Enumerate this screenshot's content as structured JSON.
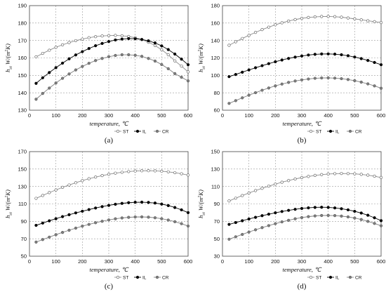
{
  "common": {
    "xlabel": "temperature, ℃",
    "ylabel": "h",
    "ylabel_sub": "ct",
    "ylabel_unit": " W/(m",
    "ylabel_sup": "2",
    "ylabel_end": "K)",
    "legend": [
      "ST",
      "IL",
      "CR"
    ],
    "colors": {
      "ST": "#ffffff",
      "IL": "#000000",
      "CR": "#7f7f7f",
      "frame": "#444444",
      "grid": "#9a9a9a"
    }
  },
  "chart_data": [
    {
      "panel_label": "(a)",
      "type": "line",
      "x": [
        25,
        50,
        75,
        100,
        125,
        150,
        175,
        200,
        225,
        250,
        275,
        300,
        325,
        350,
        375,
        400,
        425,
        450,
        475,
        500,
        525,
        550,
        575,
        600
      ],
      "xlim": [
        0,
        600
      ],
      "xticks": [
        0,
        100,
        200,
        300,
        400,
        500,
        600
      ],
      "ylim": [
        130,
        190
      ],
      "yticks": [
        130,
        140,
        150,
        160,
        170,
        180,
        190
      ],
      "xlabel": "temperature, ℃",
      "grid": true,
      "legend_position": "bottom-right",
      "series": [
        {
          "name": "ST",
          "values": [
            160.6,
            162.6,
            164.4,
            166.1,
            167.5,
            168.8,
            169.9,
            170.8,
            171.6,
            172.2,
            172.6,
            172.8,
            172.9,
            172.7,
            172.3,
            171.6,
            170.5,
            169.0,
            167.1,
            164.7,
            161.8,
            158.3,
            155.3,
            152.0
          ]
        },
        {
          "name": "IL",
          "values": [
            145.4,
            148.6,
            151.6,
            154.4,
            157.0,
            159.5,
            161.7,
            163.6,
            165.4,
            167.0,
            168.3,
            169.4,
            170.3,
            170.8,
            171.1,
            171.0,
            170.6,
            169.8,
            168.6,
            166.9,
            164.8,
            162.2,
            159.3,
            156.1
          ]
        },
        {
          "name": "CR",
          "values": [
            136.3,
            139.6,
            142.7,
            145.6,
            148.3,
            150.8,
            153.1,
            155.1,
            156.9,
            158.5,
            159.7,
            160.7,
            161.4,
            161.8,
            161.8,
            161.5,
            160.9,
            159.7,
            158.2,
            156.2,
            153.8,
            151.0,
            148.9,
            146.8
          ]
        }
      ]
    },
    {
      "panel_label": "(b)",
      "type": "line",
      "x": [
        25,
        50,
        75,
        100,
        125,
        150,
        175,
        200,
        225,
        250,
        275,
        300,
        325,
        350,
        375,
        400,
        425,
        450,
        475,
        500,
        525,
        550,
        575,
        600
      ],
      "xlim": [
        0,
        600
      ],
      "xticks": [
        0,
        100,
        200,
        300,
        400,
        500,
        600
      ],
      "ylim": [
        60,
        180
      ],
      "yticks": [
        60,
        80,
        100,
        120,
        140,
        160,
        180
      ],
      "xlabel": "temperature, ℃",
      "grid": true,
      "legend_position": "bottom-right",
      "series": [
        {
          "name": "ST",
          "values": [
            134.5,
            138.5,
            142.3,
            145.9,
            149.3,
            152.5,
            155.3,
            158.0,
            160.3,
            162.3,
            164.0,
            165.4,
            166.4,
            167.1,
            167.5,
            167.6,
            167.3,
            166.7,
            165.8,
            164.8,
            163.7,
            162.6,
            161.6,
            160.6
          ]
        },
        {
          "name": "IL",
          "values": [
            98.5,
            101.0,
            103.6,
            106.2,
            108.7,
            111.1,
            113.4,
            115.6,
            117.6,
            119.4,
            120.9,
            122.2,
            123.3,
            124.1,
            124.5,
            124.6,
            124.3,
            123.6,
            122.5,
            121.0,
            119.2,
            117.1,
            114.8,
            112.2
          ]
        },
        {
          "name": "CR",
          "values": [
            67.8,
            71.0,
            74.2,
            77.2,
            80.1,
            82.9,
            85.5,
            87.9,
            90.0,
            91.9,
            93.5,
            94.8,
            95.8,
            96.6,
            97.0,
            97.1,
            96.8,
            96.2,
            95.2,
            93.9,
            92.2,
            90.2,
            87.9,
            85.2
          ]
        }
      ]
    },
    {
      "panel_label": "(c)",
      "type": "line",
      "x": [
        25,
        50,
        75,
        100,
        125,
        150,
        175,
        200,
        225,
        250,
        275,
        300,
        325,
        350,
        375,
        400,
        425,
        450,
        475,
        500,
        525,
        550,
        575,
        600
      ],
      "xlim": [
        0,
        600
      ],
      "xticks": [
        0,
        100,
        200,
        300,
        400,
        500,
        600
      ],
      "ylim": [
        50,
        170
      ],
      "yticks": [
        50,
        70,
        90,
        110,
        130,
        150,
        170
      ],
      "xlabel": "temperature, ℃",
      "grid": true,
      "legend_position": "bottom-right",
      "series": [
        {
          "name": "ST",
          "values": [
            116.4,
            119.7,
            123.0,
            126.0,
            129.0,
            131.7,
            134.3,
            136.7,
            138.9,
            140.8,
            142.5,
            144.0,
            145.3,
            146.3,
            147.1,
            147.7,
            148.0,
            148.1,
            147.9,
            147.5,
            146.8,
            145.8,
            144.6,
            143.1
          ]
        },
        {
          "name": "IL",
          "values": [
            85.4,
            88.0,
            90.6,
            93.0,
            95.4,
            97.6,
            99.7,
            101.6,
            103.5,
            105.3,
            106.9,
            108.3,
            109.6,
            110.6,
            111.4,
            111.9,
            112.0,
            111.7,
            111.0,
            109.8,
            108.1,
            105.9,
            103.2,
            100.0
          ]
        },
        {
          "name": "CR",
          "values": [
            66.2,
            69.1,
            71.9,
            74.7,
            77.3,
            79.8,
            82.2,
            84.5,
            86.5,
            88.4,
            90.1,
            91.6,
            92.9,
            93.9,
            94.6,
            95.0,
            95.1,
            94.8,
            94.1,
            93.0,
            91.5,
            89.6,
            87.3,
            84.6
          ]
        }
      ]
    },
    {
      "panel_label": "(d)",
      "type": "line",
      "x": [
        25,
        50,
        75,
        100,
        125,
        150,
        175,
        200,
        225,
        250,
        275,
        300,
        325,
        350,
        375,
        400,
        425,
        450,
        475,
        500,
        525,
        550,
        575,
        600
      ],
      "xlim": [
        0,
        600
      ],
      "xticks": [
        0,
        100,
        200,
        300,
        400,
        500,
        600
      ],
      "ylim": [
        30,
        150
      ],
      "yticks": [
        30,
        50,
        70,
        90,
        110,
        130,
        150
      ],
      "xlabel": "temperature, ℃",
      "grid": true,
      "legend_position": "bottom-right",
      "series": [
        {
          "name": "ST",
          "values": [
            93.4,
            96.6,
            99.6,
            102.5,
            105.3,
            107.9,
            110.4,
            112.7,
            114.9,
            116.8,
            118.6,
            120.2,
            121.5,
            122.7,
            123.6,
            124.3,
            124.7,
            124.9,
            124.8,
            124.5,
            123.9,
            123.0,
            121.8,
            120.3
          ]
        },
        {
          "name": "IL",
          "values": [
            66.5,
            68.6,
            70.7,
            72.7,
            74.6,
            76.5,
            78.2,
            79.8,
            81.3,
            82.6,
            83.8,
            84.8,
            85.5,
            86.0,
            86.2,
            86.0,
            85.4,
            84.5,
            83.2,
            81.5,
            79.5,
            77.0,
            74.1,
            70.8
          ]
        },
        {
          "name": "CR",
          "values": [
            49.5,
            52.3,
            55.0,
            57.7,
            60.3,
            62.8,
            65.1,
            67.3,
            69.4,
            71.2,
            72.9,
            74.3,
            75.4,
            76.2,
            76.7,
            76.8,
            76.6,
            76.0,
            75.1,
            73.8,
            72.1,
            70.0,
            67.6,
            64.9
          ]
        }
      ]
    }
  ]
}
